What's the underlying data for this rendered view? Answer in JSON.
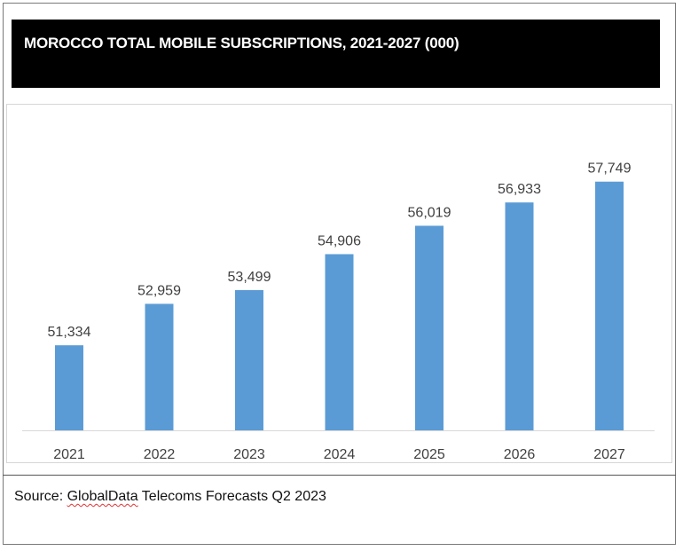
{
  "chart_data": {
    "type": "bar",
    "title": "MOROCCO TOTAL MOBILE SUBSCRIPTIONS, 2021-2027 (000)",
    "categories": [
      "2021",
      "2022",
      "2023",
      "2024",
      "2025",
      "2026",
      "2027"
    ],
    "values": [
      51334,
      52959,
      53499,
      54906,
      56019,
      56933,
      57749
    ],
    "data_labels": [
      "51,334",
      "52,959",
      "53,499",
      "54,906",
      "56,019",
      "56,933",
      "57,749"
    ],
    "xlabel": "",
    "ylabel": "",
    "ylim": [
      48000,
      60000
    ],
    "y_axis_visible": false,
    "grid": false,
    "legend": "none",
    "bar_color": "#5b9bd5"
  },
  "source": {
    "prefix": "Source: ",
    "brand": "GlobalData",
    "suffix": " Telecoms Forecasts Q2 2023"
  }
}
